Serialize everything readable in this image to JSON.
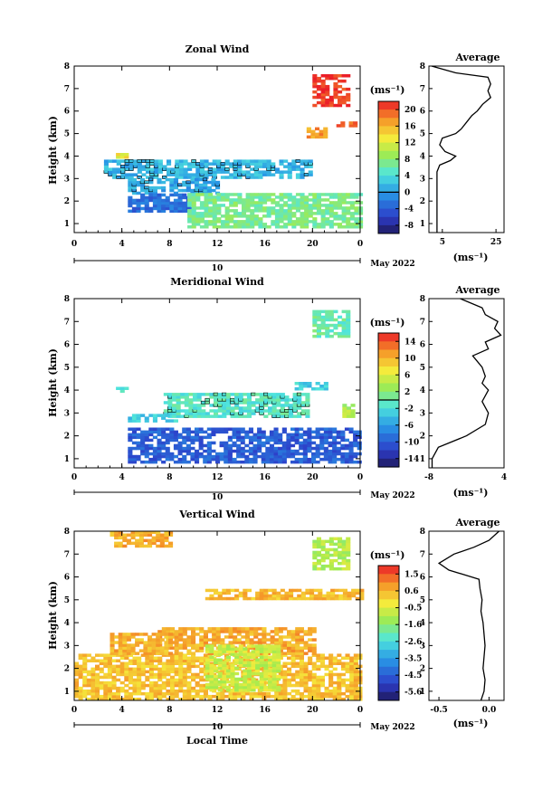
{
  "chart_data": [
    {
      "type": "heatmap",
      "title": "Zonal Wind",
      "ylabel": "Height (km)",
      "xlim": [
        0,
        24
      ],
      "ylim": [
        0.6,
        8
      ],
      "xticks": [
        "0",
        "4",
        "8",
        "12",
        "16",
        "20",
        "0"
      ],
      "yticks": [
        "1",
        "2",
        "3",
        "4",
        "5",
        "6",
        "7",
        "8"
      ],
      "date_day": "10",
      "date_label": "May 2022",
      "colorbar": {
        "unit": "(ms⁻¹)",
        "ticks": [
          "20",
          "16",
          "12",
          "8",
          "4",
          "0",
          "-4",
          "-8"
        ],
        "range": [
          -10,
          22
        ],
        "zero_line": 0
      },
      "regions": [
        {
          "x": [
            2.5,
            20
          ],
          "y": [
            3.0,
            3.8
          ],
          "value": 1.5,
          "contour": true
        },
        {
          "x": [
            4.5,
            12
          ],
          "y": [
            2.3,
            3.0
          ],
          "value": 0.5,
          "contour": true
        },
        {
          "x": [
            4.5,
            10
          ],
          "y": [
            1.5,
            2.3
          ],
          "value": -3
        },
        {
          "x": [
            9.5,
            24
          ],
          "y": [
            0.8,
            2.3
          ],
          "value": 7
        },
        {
          "x": [
            20,
            23
          ],
          "y": [
            6.2,
            7.6
          ],
          "value": 21
        },
        {
          "x": [
            19.5,
            21
          ],
          "y": [
            4.8,
            5.2
          ],
          "value": 17
        },
        {
          "x": [
            22,
            23.5
          ],
          "y": [
            5.3,
            5.5
          ],
          "value": 19
        },
        {
          "x": [
            3.5,
            4.5
          ],
          "y": [
            3.9,
            4.1
          ],
          "value": 13
        }
      ],
      "profile": {
        "title": "Average",
        "xlabel": "(ms⁻¹)",
        "xticks": [
          "5",
          "25"
        ],
        "xlim": [
          0,
          28
        ],
        "heights": [
          0.6,
          1.0,
          1.5,
          2.0,
          2.5,
          3.0,
          3.3,
          3.6,
          3.8,
          4.0,
          4.2,
          4.5,
          4.8,
          5.0,
          5.2,
          5.5,
          5.8,
          6.0,
          6.3,
          6.6,
          6.9,
          7.2,
          7.5,
          7.7,
          8.0
        ],
        "values": [
          3,
          3,
          3,
          3,
          3,
          3,
          3,
          4,
          8,
          10,
          6,
          4,
          5,
          10,
          12,
          14,
          16,
          18,
          20,
          23,
          22,
          23,
          22,
          10,
          1
        ]
      }
    },
    {
      "type": "heatmap",
      "title": "Meridional Wind",
      "ylabel": "Height (km)",
      "xlim": [
        0,
        24
      ],
      "ylim": [
        0.6,
        8
      ],
      "xticks": [
        "0",
        "4",
        "8",
        "12",
        "16",
        "20",
        "0"
      ],
      "yticks": [
        "1",
        "2",
        "3",
        "4",
        "5",
        "6",
        "7",
        "8"
      ],
      "date_day": "10",
      "date_label": "May 2022",
      "colorbar": {
        "unit": "(ms⁻¹)",
        "ticks": [
          "14",
          "10",
          "6",
          "2",
          "-2",
          "-6",
          "-10",
          "-14"
        ],
        "range": [
          -16,
          16
        ],
        "zero_line": 0
      },
      "regions": [
        {
          "x": [
            7.5,
            19.5
          ],
          "y": [
            2.8,
            3.8
          ],
          "value": -1,
          "contour": true
        },
        {
          "x": [
            4.5,
            8.5
          ],
          "y": [
            2.6,
            2.9
          ],
          "value": -3
        },
        {
          "x": [
            4.5,
            24
          ],
          "y": [
            0.8,
            2.3
          ],
          "value": -10
        },
        {
          "x": [
            20,
            23
          ],
          "y": [
            6.3,
            7.4
          ],
          "value": 0
        },
        {
          "x": [
            3.5,
            4.5
          ],
          "y": [
            3.9,
            4.1
          ],
          "value": -2
        },
        {
          "x": [
            22.5,
            23.5
          ],
          "y": [
            2.8,
            3.3
          ],
          "value": 4
        },
        {
          "x": [
            18.5,
            21
          ],
          "y": [
            4.0,
            4.3
          ],
          "value": -3
        }
      ],
      "profile": {
        "title": "Average",
        "xlabel": "(ms⁻¹)",
        "xticks": [
          "-8",
          "4"
        ],
        "xlim": [
          -8,
          4
        ],
        "heights": [
          0.6,
          1.0,
          1.5,
          2.0,
          2.5,
          3.0,
          3.5,
          4.0,
          4.3,
          4.6,
          5.0,
          5.5,
          5.8,
          6.1,
          6.4,
          6.7,
          7.0,
          7.3,
          7.6,
          8.0
        ],
        "values": [
          -7.5,
          -7.5,
          -6.5,
          -2,
          1,
          1.5,
          0.5,
          1.5,
          0.5,
          1,
          0.5,
          -1,
          1.5,
          1,
          3.5,
          2.5,
          3,
          1,
          0.5,
          -3
        ]
      }
    },
    {
      "type": "heatmap",
      "title": "Vertical Wind",
      "ylabel": "Height (km)",
      "xlabel": "Local Time",
      "xlim": [
        0,
        24
      ],
      "ylim": [
        0.6,
        8
      ],
      "xticks": [
        "0",
        "4",
        "8",
        "12",
        "16",
        "20",
        "0"
      ],
      "yticks": [
        "1",
        "2",
        "3",
        "4",
        "5",
        "6",
        "7",
        "8"
      ],
      "date_day": "10",
      "date_label": "May 2022",
      "colorbar": {
        "unit": "(ms⁻¹)",
        "ticks": [
          "1.5",
          "0.6",
          "-0.5",
          "-1.6",
          "-2.6",
          "-3.5",
          "-4.5",
          "-5.6"
        ],
        "range": [
          -6.5,
          2.0
        ]
      },
      "regions": [
        {
          "x": [
            0,
            24
          ],
          "y": [
            0.6,
            2.6
          ],
          "value": 0.2
        },
        {
          "x": [
            7,
            20
          ],
          "y": [
            2.6,
            3.8
          ],
          "value": 0.5
        },
        {
          "x": [
            3,
            8
          ],
          "y": [
            2.6,
            3.5
          ],
          "value": 0.4
        },
        {
          "x": [
            11,
            17
          ],
          "y": [
            1.0,
            3.0
          ],
          "value": -0.9
        },
        {
          "x": [
            20,
            23
          ],
          "y": [
            6.3,
            7.7
          ],
          "value": -1.2
        },
        {
          "x": [
            3,
            8
          ],
          "y": [
            7.3,
            8.0
          ],
          "value": 0.5
        },
        {
          "x": [
            11,
            24
          ],
          "y": [
            5.0,
            5.4
          ],
          "value": 0.3
        }
      ],
      "profile": {
        "title": "Average",
        "xlabel": "(ms⁻¹)",
        "xticks": [
          "-0.5",
          "0.0"
        ],
        "xlim": [
          -0.6,
          0.15
        ],
        "heights": [
          0.6,
          1.0,
          1.5,
          2.0,
          2.5,
          3.0,
          3.5,
          4.0,
          4.5,
          5.0,
          5.5,
          5.9,
          6.1,
          6.3,
          6.6,
          7.0,
          7.3,
          7.6,
          8.0
        ],
        "values": [
          -0.08,
          -0.05,
          -0.04,
          -0.06,
          -0.05,
          -0.04,
          -0.05,
          -0.06,
          -0.08,
          -0.07,
          -0.09,
          -0.1,
          -0.25,
          -0.4,
          -0.5,
          -0.35,
          -0.15,
          0.0,
          0.1
        ]
      }
    }
  ]
}
